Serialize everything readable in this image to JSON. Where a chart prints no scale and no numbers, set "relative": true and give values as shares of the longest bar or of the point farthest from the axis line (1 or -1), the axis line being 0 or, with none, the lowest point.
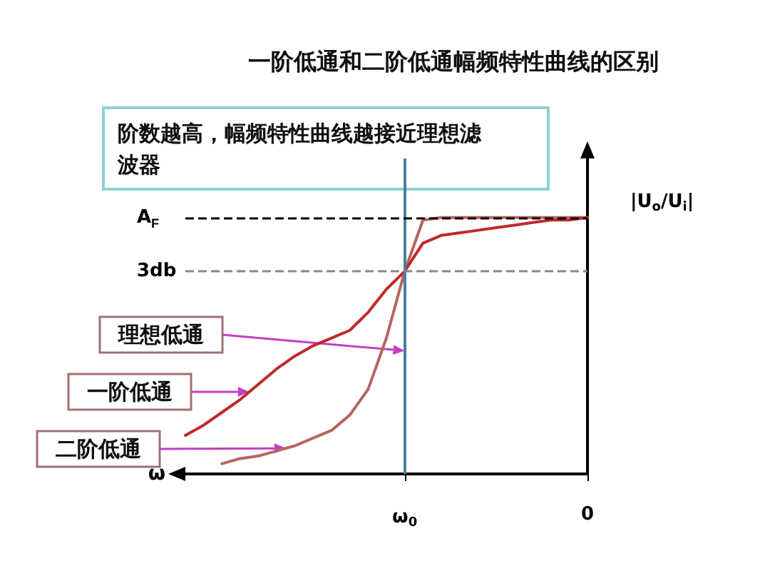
{
  "chart_data": {
    "type": "line",
    "title": "一阶低通和二阶低通幅频特性曲线的区别",
    "xlabel": "ω",
    "ylabel": "|U$_{o}$/U$_{i}$|",
    "relative": true,
    "marker": "none",
    "grid": false,
    "categories": [
      null,
      null,
      null,
      null,
      null,
      null,
      null,
      null,
      null,
      null,
      null,
      null,
      "ω$_{0}$",
      null,
      null,
      null,
      null,
      null,
      null,
      null,
      null,
      null,
      "0"
    ],
    "series": [
      {
        "color": "#c0282a",
        "values": [
          0.15,
          0.19,
          0.24,
          0.29,
          0.35,
          0.41,
          0.46,
          0.5,
          0.53,
          0.56,
          0.63,
          0.72,
          0.79,
          0.9,
          0.93,
          0.94,
          0.95,
          0.96,
          0.97,
          0.98,
          0.99,
          0.99,
          1
        ]
      },
      {
        "color": "#b5655f",
        "values": [
          null,
          null,
          0.04,
          0.06,
          0.07,
          0.09,
          0.11,
          0.14,
          0.17,
          0.23,
          0.33,
          0.53,
          0.79,
          0.99,
          1,
          1,
          1,
          1,
          1,
          1,
          1,
          1,
          1
        ]
      }
    ],
    "ref_lines": [
      {
        "axis": "x",
        "value": "ω$_{0}$",
        "color": "#4a7fa0",
        "line_style": "solid"
      },
      {
        "axis": "y",
        "value": 1,
        "label": "A$_{F}$",
        "color": "#000000",
        "line_style": "dashed"
      },
      {
        "axis": "y",
        "value": 0.79,
        "label": "3db",
        "color": "#888888",
        "line_style": "dashed"
      }
    ],
    "annotations": [
      "阶数越高，幅频特性曲线越接近理想滤波器",
      {
        "text": "理想低通",
        "x": "ω$_{0}$",
        "y": 0.48
      },
      "一阶低通",
      "二阶低通"
    ]
  }
}
